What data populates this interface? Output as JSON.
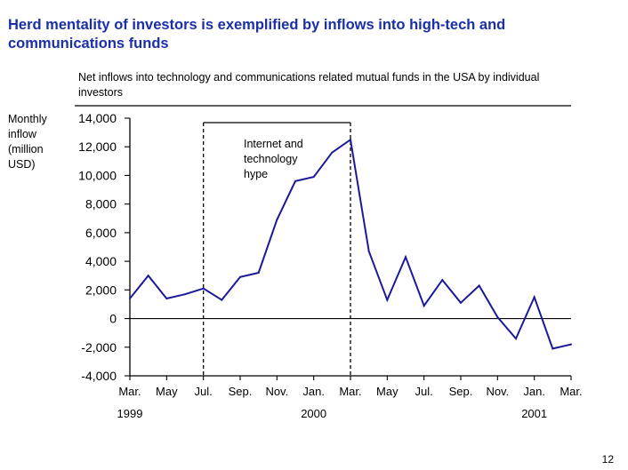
{
  "slide": {
    "title": "Herd mentality of investors is exemplified by inflows into high-tech and communications funds",
    "page_number": "12"
  },
  "chart_data": {
    "type": "line",
    "title": "Net inflows into technology and communications related mutual funds in the USA by individual investors",
    "ylabel": "Monthly inflow (million USD)",
    "xlabel": "",
    "ylim": [
      -4000,
      14000
    ],
    "yticks": [
      14000,
      12000,
      10000,
      8000,
      6000,
      4000,
      2000,
      0,
      -2000,
      -4000
    ],
    "ytick_labels": [
      "14,000",
      "12,000",
      "10,000",
      "8,000",
      "6,000",
      "4,000",
      "2,000",
      "0",
      "-2,000",
      "-4,000"
    ],
    "x_month_labels": [
      "Mar.",
      "May",
      "Jul.",
      "Sep.",
      "Nov.",
      "Jan.",
      "Mar.",
      "May",
      "Jul.",
      "Sep.",
      "Nov.",
      "Jan.",
      "Mar."
    ],
    "x_year_labels": [
      "1999",
      "2000",
      "2001"
    ],
    "x_start": "1999-03",
    "grid": false,
    "series": [
      {
        "color": "#1a1a99",
        "values": [
          1400,
          3000,
          1400,
          1700,
          2100,
          1300,
          2900,
          3200,
          6900,
          9600,
          9900,
          11600,
          12500,
          4700,
          1300,
          4300,
          900,
          2700,
          1100,
          2300,
          100,
          -1400,
          1500,
          -2100,
          -1800
        ]
      }
    ],
    "annotation": {
      "text": "Internet and technology hype",
      "from": "1999-07",
      "to": "2000-03"
    }
  }
}
